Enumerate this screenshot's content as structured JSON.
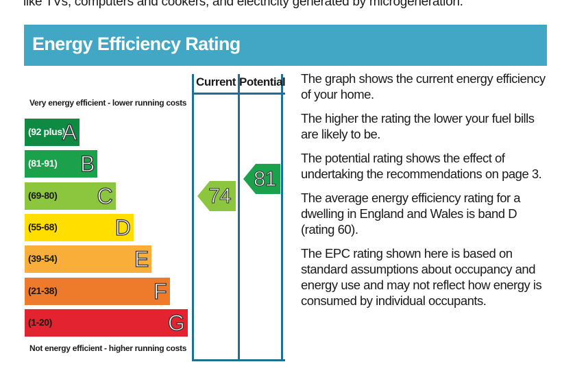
{
  "intro_text": "like TVs, computers and cookers, and electricity generated by microgeneration.",
  "header": {
    "title": "Energy Efficiency Rating"
  },
  "scale": {
    "top_label": "Very energy efficient - lower running costs",
    "bottom_label": "Not energy efficient - higher running costs"
  },
  "bands": [
    {
      "letter": "A",
      "range": "(92 plus)",
      "color": "#0f8a43",
      "text_color": "#ffffff"
    },
    {
      "letter": "B",
      "range": "(81-91)",
      "color": "#1ba04b",
      "text_color": "#ffffff"
    },
    {
      "letter": "C",
      "range": "(69-80)",
      "color": "#8cc63f",
      "text_color": "#1a1a1a"
    },
    {
      "letter": "D",
      "range": "(55-68)",
      "color": "#ffde00",
      "text_color": "#1a1a1a"
    },
    {
      "letter": "E",
      "range": "(39-54)",
      "color": "#f8ae38",
      "text_color": "#1a1a1a"
    },
    {
      "letter": "F",
      "range": "(21-38)",
      "color": "#ee7a2c",
      "text_color": "#1a1a1a"
    },
    {
      "letter": "G",
      "range": "(1-20)",
      "color": "#e3232f",
      "text_color": "#1a1a1a"
    }
  ],
  "columns": {
    "current_label": "Current",
    "potential_label": "Potential"
  },
  "ratings": {
    "current": {
      "value": "74",
      "band": "C",
      "color": "#8cc63f"
    },
    "potential": {
      "value": "81",
      "band": "B",
      "color": "#1ba04b"
    }
  },
  "explanation": [
    "The graph shows the current energy efficiency of your home.",
    "The higher the rating the lower your fuel bills are likely to be.",
    "The potential rating shows the effect of undertaking the recommendations on page 3.",
    "The average energy efficiency rating for a dwelling in England and Wales is band D (rating 60).",
    "The EPC rating shown here is based on standard assumptions about occupancy and energy use and may not reflect how energy is consumed by individual occupants."
  ],
  "colors": {
    "header_bg": "#41a7c4",
    "frame": "#1d6f93"
  }
}
